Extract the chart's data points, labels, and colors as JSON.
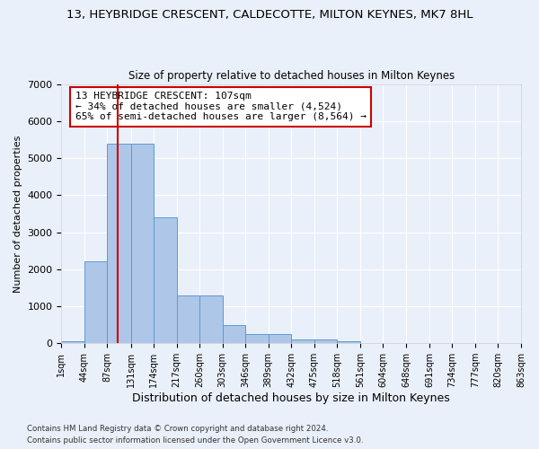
{
  "title": "13, HEYBRIDGE CRESCENT, CALDECOTTE, MILTON KEYNES, MK7 8HL",
  "subtitle": "Size of property relative to detached houses in Milton Keynes",
  "xlabel": "Distribution of detached houses by size in Milton Keynes",
  "ylabel": "Number of detached properties",
  "footer1": "Contains HM Land Registry data © Crown copyright and database right 2024.",
  "footer2": "Contains public sector information licensed under the Open Government Licence v3.0.",
  "annotation_line1": "13 HEYBRIDGE CRESCENT: 107sqm",
  "annotation_line2": "← 34% of detached houses are smaller (4,524)",
  "annotation_line3": "65% of semi-detached houses are larger (8,564) →",
  "property_size": 107,
  "bin_edges": [
    1,
    44,
    87,
    131,
    174,
    217,
    260,
    303,
    346,
    389,
    432,
    475,
    518,
    561,
    604,
    648,
    691,
    734,
    777,
    820,
    863
  ],
  "bar_heights": [
    50,
    2200,
    5400,
    5400,
    3400,
    1300,
    1300,
    500,
    250,
    250,
    100,
    100,
    50,
    0,
    0,
    0,
    0,
    0,
    0,
    0
  ],
  "bar_color": "#aec6e8",
  "bar_edge_color": "#5b9bd5",
  "red_line_color": "#cc0000",
  "annotation_box_color": "#ffffff",
  "annotation_box_edge": "#cc0000",
  "bg_color": "#eaf0f9",
  "grid_color": "#ffffff",
  "ylim": [
    0,
    7000
  ],
  "yticks": [
    0,
    1000,
    2000,
    3000,
    4000,
    5000,
    6000,
    7000
  ]
}
